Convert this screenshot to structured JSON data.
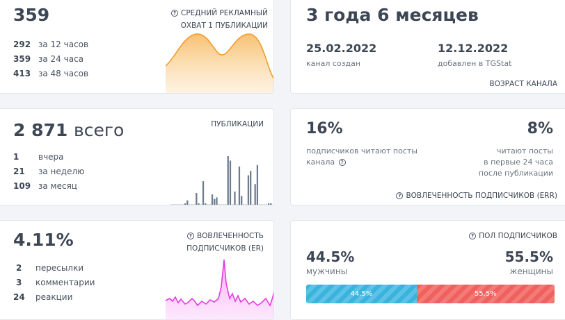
{
  "reach": {
    "value": "359",
    "title_line1": "СРЕДНИЙ РЕКЛАМНЫЙ",
    "title_line2": "ОХВАТ 1 ПУБЛИКАЦИИ",
    "rows": [
      {
        "num": "292",
        "label": "за 12 часов"
      },
      {
        "num": "359",
        "label": "за 24 часа"
      },
      {
        "num": "413",
        "label": "за 48 часов"
      }
    ],
    "color": "#f39c2b"
  },
  "age": {
    "value": "3 года 6 месяцев",
    "created_date": "25.02.2022",
    "created_label": "канал создан",
    "added_date": "12.12.2022",
    "added_label": "добавлен в TGStat",
    "title": "ВОЗРАСТ КАНАЛА"
  },
  "posts": {
    "value": "2 871",
    "value_suffix": "всего",
    "title": "ПУБЛИКАЦИИ",
    "rows": [
      {
        "num": "1",
        "label": "вчера"
      },
      {
        "num": "21",
        "label": "за неделю"
      },
      {
        "num": "109",
        "label": "за месяц"
      }
    ],
    "bar_color": "#6d7c8e",
    "bars": [
      0,
      0,
      0,
      0,
      0,
      0,
      1,
      3,
      0,
      0,
      0,
      8,
      1,
      0,
      16,
      1,
      0,
      0,
      7,
      4,
      5,
      0,
      0,
      0,
      0,
      33,
      30,
      0,
      9,
      0,
      26,
      6,
      0,
      0,
      20,
      23,
      0,
      14,
      27,
      0,
      0,
      0,
      0,
      1,
      1
    ]
  },
  "err": {
    "left_value": "16%",
    "left_label_line1": "подписчиков читают посты",
    "left_label_line2": "канала",
    "right_value": "8%",
    "right_label_line1": "читают посты",
    "right_label_line2": "в первые 24 часа",
    "right_label_line3": "после публикации",
    "title": "ВОВЛЕЧЕННОСТЬ ПОДПИСЧИКОВ (ERR)"
  },
  "er": {
    "value": "4.11%",
    "title_line1": "ВОВЛЕЧЕННОСТЬ",
    "title_line2": "ПОДПИСЧИКОВ (ER)",
    "rows": [
      {
        "num": "2",
        "label": "пересылки"
      },
      {
        "num": "3",
        "label": "комментарии"
      },
      {
        "num": "24",
        "label": "реакции"
      }
    ],
    "color": "#e23ce0"
  },
  "gender": {
    "title": "ПОЛ ПОДПИСЧИКОВ",
    "male_value": "44.5%",
    "male_label": "мужчины",
    "female_value": "55.5%",
    "female_label": "женщины",
    "male_share": 44.5,
    "male_bar_label": "44.5%",
    "female_bar_label": "55.5%",
    "male_color": "#3ab4dd",
    "female_color": "#f0605e"
  }
}
